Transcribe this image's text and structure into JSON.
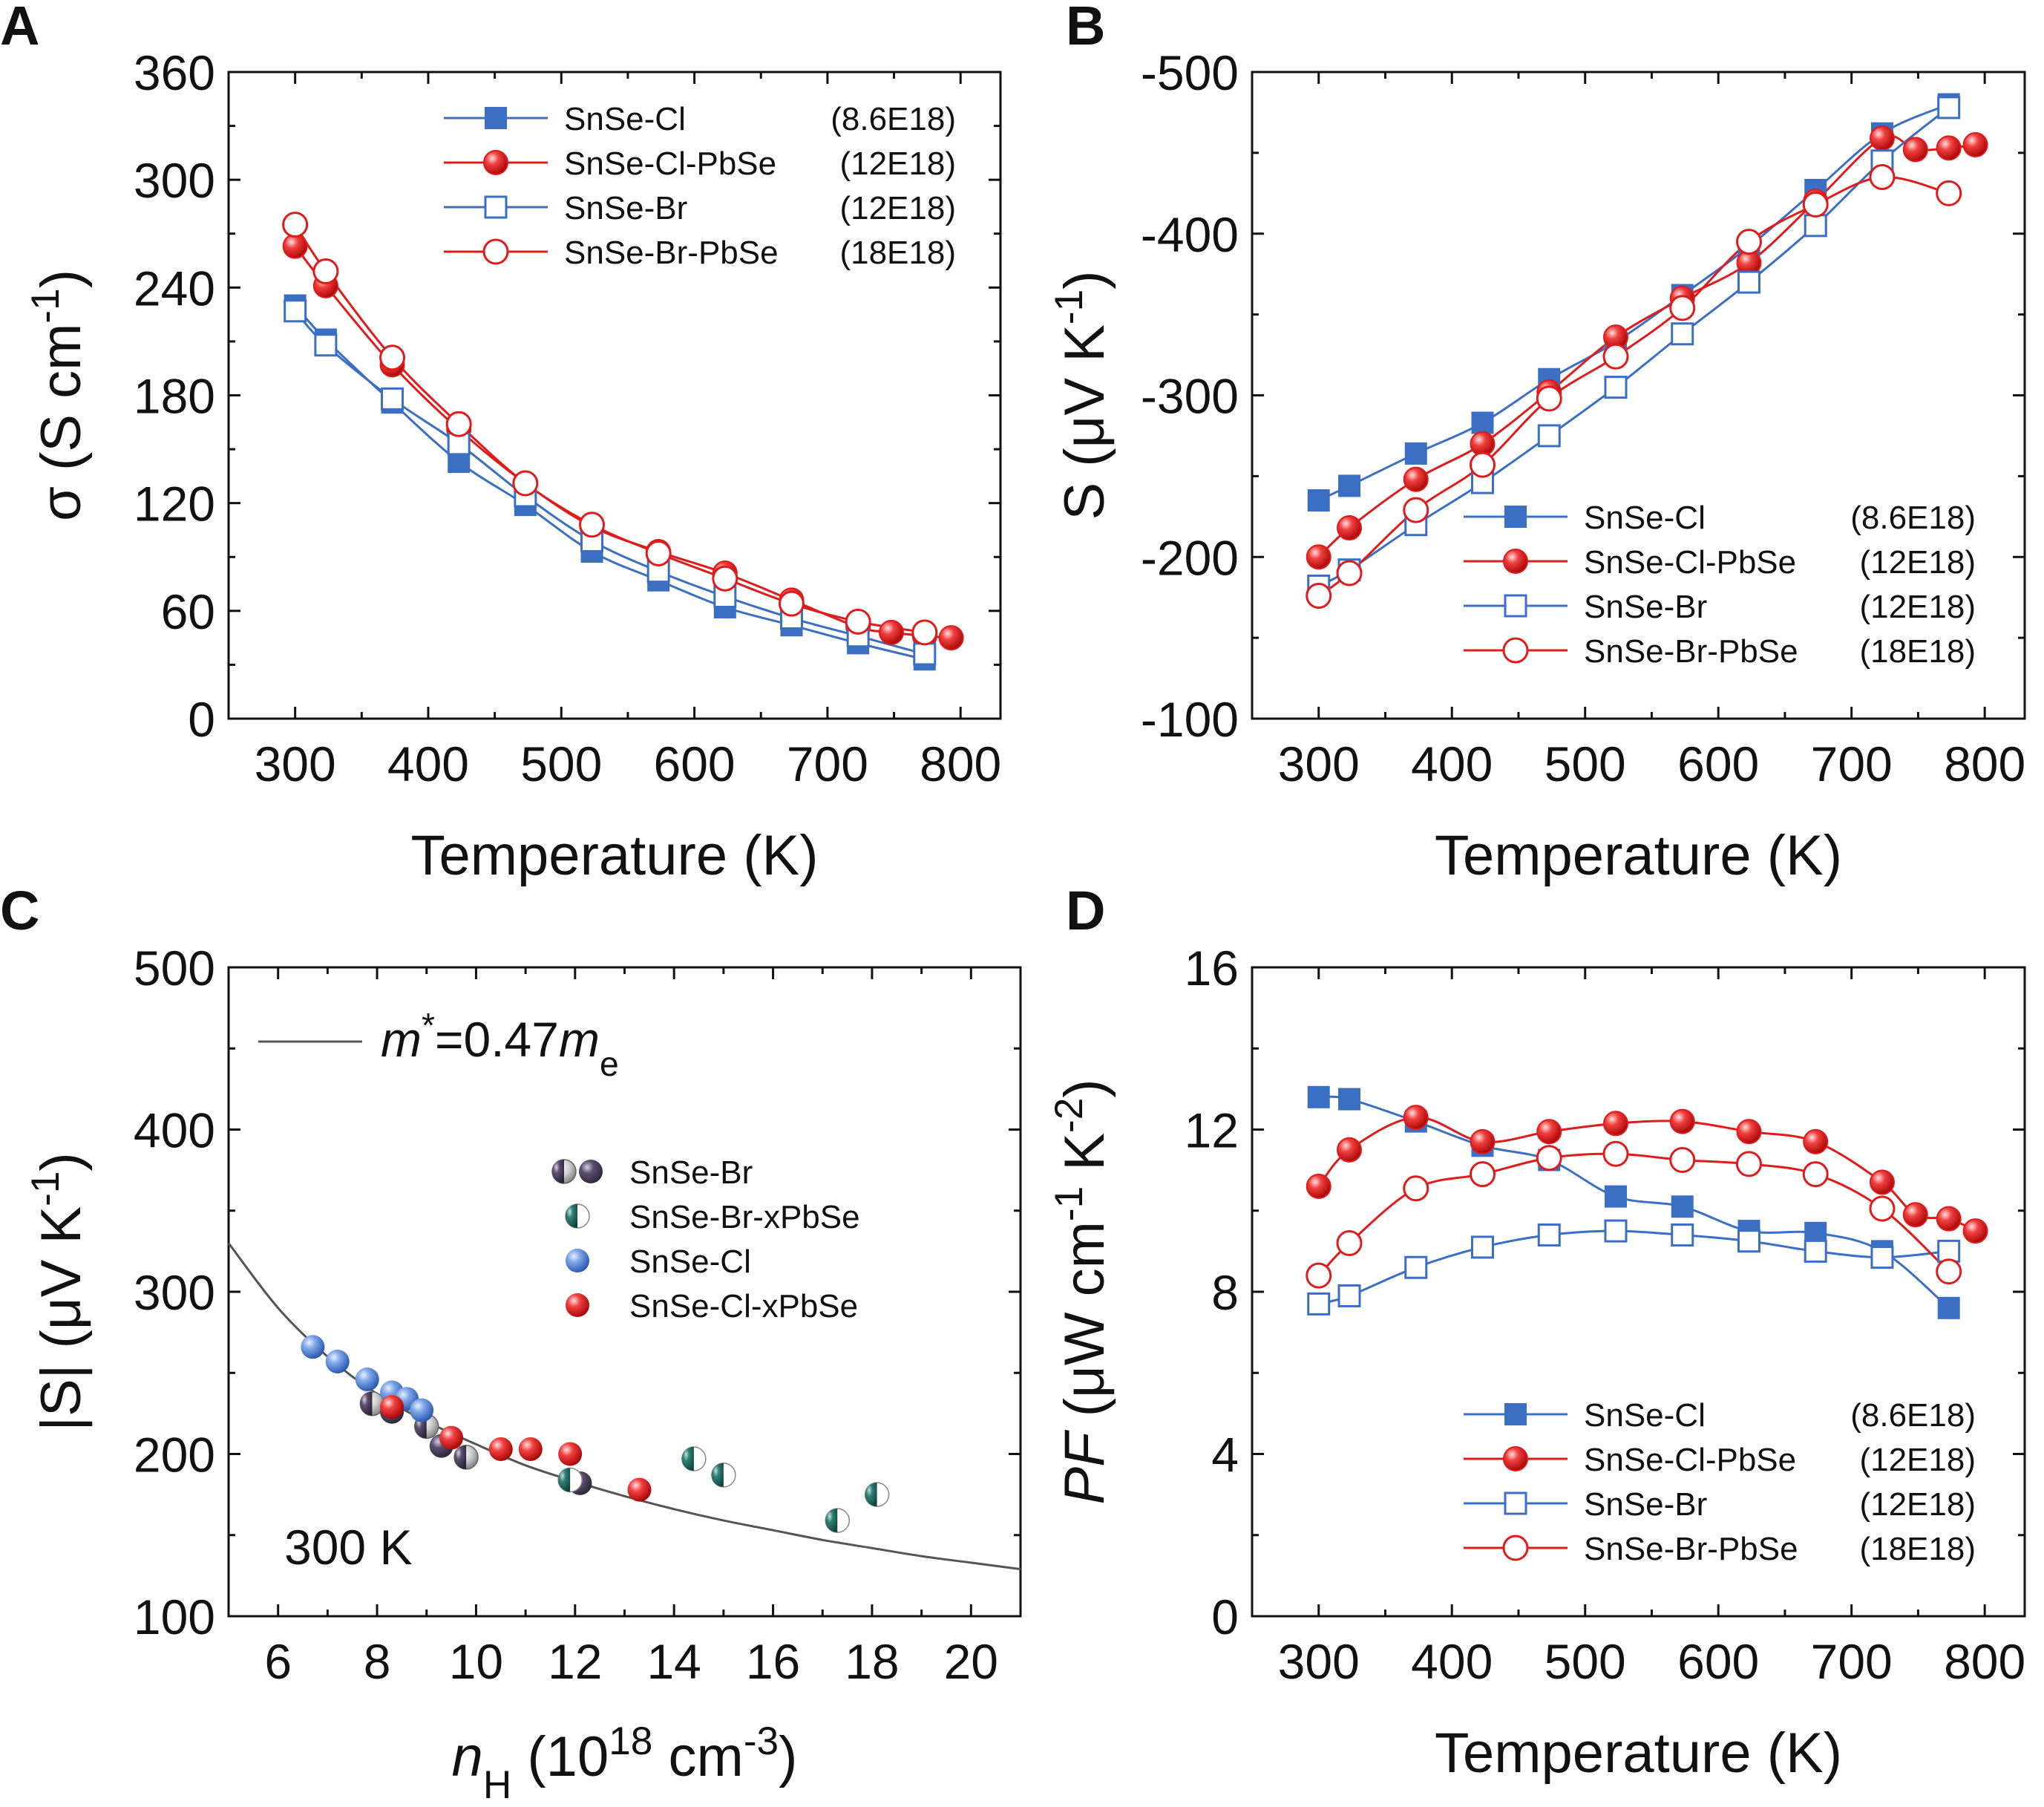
{
  "figure": {
    "panels": [
      "A",
      "B",
      "C",
      "D"
    ]
  },
  "colors": {
    "blue": "#3B6FC4",
    "red": "#E01B1B",
    "dark": "#4A4058",
    "teal": "#1F6B62",
    "fit": "#555555"
  },
  "chart_data": [
    {
      "panel": "A",
      "type": "line",
      "xlabel": "Temperature (K)",
      "ylabel_parts": [
        "σ (S cm",
        "-1",
        ")"
      ],
      "xlim": [
        250,
        830
      ],
      "ylim": [
        0,
        360
      ],
      "xticks": [
        300,
        400,
        500,
        600,
        700,
        800
      ],
      "yticks": [
        0,
        60,
        120,
        180,
        240,
        300,
        360
      ],
      "legend_position": "top-right",
      "series": [
        {
          "name": "SnSe-Cl",
          "carrier": "(8.6E18)",
          "marker": "filled-square",
          "color": "#3B6FC4",
          "x": [
            300,
            323,
            373,
            423,
            473,
            523,
            573,
            623,
            673,
            723,
            773
          ],
          "y": [
            230,
            211,
            176,
            143,
            119,
            93,
            77,
            62,
            52,
            42,
            33
          ]
        },
        {
          "name": "SnSe-Cl-PbSe",
          "carrier": "(12E18)",
          "marker": "filled-circle",
          "color": "#E01B1B",
          "x": [
            300,
            323,
            373,
            423,
            473,
            523,
            573,
            623,
            673,
            723,
            748,
            773,
            793
          ],
          "y": [
            263,
            241,
            197,
            161,
            131,
            107,
            93,
            81,
            66,
            51,
            48,
            46,
            45
          ]
        },
        {
          "name": "SnSe-Br",
          "carrier": "(12E18)",
          "marker": "open-square",
          "color": "#3B6FC4",
          "x": [
            300,
            323,
            373,
            423,
            473,
            523,
            573,
            623,
            673,
            723,
            773
          ],
          "y": [
            227,
            208,
            178,
            153,
            124,
            99,
            82,
            68,
            56,
            46,
            36
          ]
        },
        {
          "name": "SnSe-Br-PbSe",
          "carrier": "(18E18)",
          "marker": "open-circle",
          "color": "#E01B1B",
          "x": [
            300,
            323,
            373,
            423,
            473,
            523,
            573,
            623,
            673,
            723,
            773
          ],
          "y": [
            275,
            249,
            201,
            164,
            131,
            108,
            92,
            78,
            64,
            54,
            48
          ]
        }
      ]
    },
    {
      "panel": "B",
      "type": "line",
      "xlabel": "Temperature (K)",
      "ylabel_parts": [
        "S (μV K",
        "-1",
        ")"
      ],
      "xlim": [
        250,
        830
      ],
      "ylim": [
        -500,
        -100
      ],
      "y_inverted": true,
      "xticks": [
        300,
        400,
        500,
        600,
        700,
        800
      ],
      "yticks": [
        -500,
        -400,
        -300,
        -200,
        -100
      ],
      "legend_position": "bottom-right",
      "series": [
        {
          "name": "SnSe-Cl",
          "carrier": "(8.6E18)",
          "marker": "filled-square",
          "color": "#3B6FC4",
          "x": [
            300,
            323,
            373,
            423,
            473,
            523,
            573,
            623,
            673,
            723,
            773
          ],
          "y": [
            -235,
            -244,
            -264,
            -283,
            -310,
            -333,
            -362,
            -392,
            -427,
            -462,
            -480
          ]
        },
        {
          "name": "SnSe-Cl-PbSe",
          "carrier": "(12E18)",
          "marker": "filled-circle",
          "color": "#E01B1B",
          "x": [
            300,
            323,
            373,
            423,
            473,
            523,
            573,
            623,
            673,
            723,
            748,
            773,
            793
          ],
          "y": [
            -200,
            -218,
            -248,
            -270,
            -302,
            -336,
            -360,
            -382,
            -420,
            -459,
            -452,
            -453,
            -455
          ]
        },
        {
          "name": "SnSe-Br",
          "carrier": "(12E18)",
          "marker": "open-square",
          "color": "#3B6FC4",
          "x": [
            300,
            323,
            373,
            423,
            473,
            523,
            573,
            623,
            673,
            723,
            773
          ],
          "y": [
            -182,
            -192,
            -220,
            -246,
            -275,
            -305,
            -338,
            -370,
            -405,
            -445,
            -478
          ]
        },
        {
          "name": "SnSe-Br-PbSe",
          "carrier": "(18E18)",
          "marker": "open-circle",
          "color": "#E01B1B",
          "x": [
            300,
            323,
            373,
            423,
            473,
            523,
            573,
            623,
            673,
            723,
            773
          ],
          "y": [
            -176,
            -190,
            -229,
            -257,
            -298,
            -324,
            -354,
            -395,
            -418,
            -435,
            -425
          ]
        }
      ]
    },
    {
      "panel": "C",
      "type": "scatter",
      "xlabel_parts": [
        "n",
        "H",
        " (10",
        "18",
        " cm",
        "-3",
        ")"
      ],
      "ylabel_parts": [
        "|S| (μV K",
        "-1",
        ")"
      ],
      "xlim": [
        5,
        21
      ],
      "ylim": [
        100,
        500
      ],
      "xticks": [
        6,
        8,
        10,
        12,
        14,
        16,
        18,
        20
      ],
      "yticks": [
        100,
        200,
        300,
        400,
        500
      ],
      "annotation": "300 K",
      "fit_label_parts": [
        "m",
        "*",
        "=0.47",
        "m",
        "e"
      ],
      "fit_curve": {
        "x": [
          5,
          6,
          7,
          8,
          9,
          10,
          11,
          12,
          13,
          14,
          15,
          16,
          17,
          18,
          19,
          20,
          21
        ],
        "y": [
          330,
          290,
          260,
          237,
          220,
          206,
          193,
          183,
          174,
          166,
          159,
          153,
          147,
          142,
          137,
          133,
          129
        ]
      },
      "legend_position": "middle-left",
      "series": [
        {
          "name": "SnSe-Br",
          "marker": "half-and-dark-sphere",
          "x": [
            7.9,
            8.3,
            9.0,
            9.3,
            9.8,
            12.1
          ],
          "y": [
            231,
            226,
            217,
            205,
            198,
            182
          ]
        },
        {
          "name": "SnSe-Br-xPbSe",
          "marker": "half-teal-sphere",
          "x": [
            11.9,
            14.4,
            15.0,
            17.3,
            18.1
          ],
          "y": [
            184,
            197,
            187,
            159,
            175
          ]
        },
        {
          "name": "SnSe-Cl",
          "marker": "blue-sphere",
          "x": [
            6.7,
            7.2,
            7.8,
            8.3,
            8.6,
            8.9
          ],
          "y": [
            266,
            257,
            246,
            238,
            234,
            227
          ]
        },
        {
          "name": "SnSe-Cl-xPbSe",
          "marker": "red-sphere",
          "x": [
            8.3,
            9.5,
            10.5,
            11.1,
            11.9,
            13.3
          ],
          "y": [
            229,
            210,
            203,
            203,
            200,
            178
          ]
        }
      ]
    },
    {
      "panel": "D",
      "type": "line",
      "xlabel": "Temperature (K)",
      "ylabel_parts": [
        "PF",
        " (μW cm",
        "-1",
        " K",
        "-2",
        ")"
      ],
      "xlim": [
        250,
        830
      ],
      "ylim": [
        0,
        16
      ],
      "xticks": [
        300,
        400,
        500,
        600,
        700,
        800
      ],
      "yticks": [
        0,
        4,
        8,
        12,
        16
      ],
      "legend_position": "bottom-right",
      "series": [
        {
          "name": "SnSe-Cl",
          "carrier": "(8.6E18)",
          "marker": "filled-square",
          "color": "#3B6FC4",
          "x": [
            300,
            323,
            373,
            423,
            473,
            523,
            573,
            623,
            673,
            723,
            773
          ],
          "y": [
            12.8,
            12.75,
            12.2,
            11.6,
            11.25,
            10.35,
            10.1,
            9.5,
            9.45,
            9.0,
            7.6
          ]
        },
        {
          "name": "SnSe-Cl-PbSe",
          "carrier": "(12E18)",
          "marker": "filled-circle",
          "color": "#E01B1B",
          "x": [
            300,
            323,
            373,
            423,
            473,
            523,
            573,
            623,
            673,
            723,
            748,
            773,
            793
          ],
          "y": [
            10.6,
            11.5,
            12.3,
            11.7,
            11.95,
            12.15,
            12.2,
            11.95,
            11.7,
            10.7,
            9.9,
            9.8,
            9.5
          ]
        },
        {
          "name": "SnSe-Br",
          "carrier": "(12E18)",
          "marker": "open-square",
          "color": "#3B6FC4",
          "x": [
            300,
            323,
            373,
            423,
            473,
            523,
            573,
            623,
            673,
            723,
            773
          ],
          "y": [
            7.7,
            7.9,
            8.6,
            9.1,
            9.4,
            9.5,
            9.4,
            9.25,
            9.0,
            8.85,
            9.0
          ]
        },
        {
          "name": "SnSe-Br-PbSe",
          "carrier": "(18E18)",
          "marker": "open-circle",
          "color": "#E01B1B",
          "x": [
            300,
            323,
            373,
            423,
            473,
            523,
            573,
            623,
            673,
            723,
            773
          ],
          "y": [
            8.4,
            9.2,
            10.55,
            10.9,
            11.3,
            11.4,
            11.25,
            11.15,
            10.9,
            10.05,
            8.5
          ]
        }
      ]
    }
  ]
}
